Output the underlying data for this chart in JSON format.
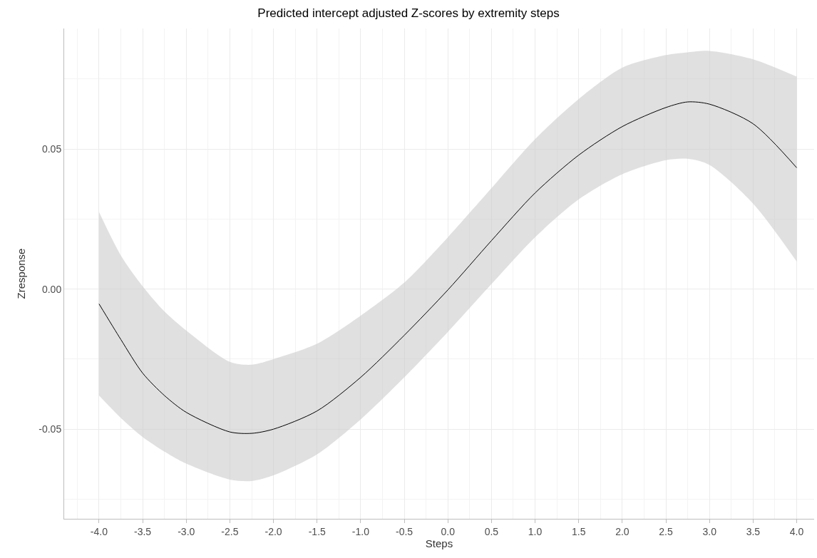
{
  "chart_data": {
    "type": "line",
    "title": "Predicted intercept adjusted Z-scores by extremity steps",
    "xlabel": "Steps",
    "ylabel": "Zresponse",
    "x": [
      -4.0,
      -3.75,
      -3.5,
      -3.25,
      -3.0,
      -2.5,
      -2.25,
      -2.0,
      -1.5,
      -1.0,
      -0.5,
      0.0,
      0.5,
      1.0,
      1.5,
      2.0,
      2.5,
      2.75,
      3.0,
      3.5,
      4.0
    ],
    "series": [
      {
        "color": "#000000",
        "values": [
          -0.0053,
          -0.018,
          -0.03,
          -0.038,
          -0.044,
          -0.051,
          -0.0515,
          -0.05,
          -0.0435,
          -0.0315,
          -0.0165,
          -0.0003,
          0.0173,
          0.0343,
          0.0478,
          0.058,
          0.0648,
          0.0668,
          0.066,
          0.059,
          0.0433
        ],
        "lower": [
          -0.038,
          -0.046,
          -0.0528,
          -0.058,
          -0.0623,
          -0.068,
          -0.0685,
          -0.0665,
          -0.059,
          -0.0465,
          -0.0315,
          -0.0153,
          0.0018,
          0.0185,
          0.032,
          0.041,
          0.046,
          0.0465,
          0.0443,
          0.0305,
          0.0098
        ],
        "upper": [
          0.0275,
          0.012,
          0.001,
          -0.008,
          -0.0148,
          -0.026,
          -0.027,
          -0.025,
          -0.0195,
          -0.0095,
          0.0023,
          0.0185,
          0.036,
          0.0535,
          0.0678,
          0.079,
          0.0835,
          0.0845,
          0.085,
          0.082,
          0.0758
        ]
      }
    ],
    "xlim": [
      -4.4,
      4.2
    ],
    "ylim": [
      -0.082,
      0.093
    ],
    "xticks": [
      {
        "value": -4.0,
        "label": "-4.0"
      },
      {
        "value": -3.5,
        "label": "-3.5"
      },
      {
        "value": -3.0,
        "label": "-3.0"
      },
      {
        "value": -2.5,
        "label": "-2.5"
      },
      {
        "value": -2.0,
        "label": "-2.0"
      },
      {
        "value": -1.5,
        "label": "-1.5"
      },
      {
        "value": -1.0,
        "label": "-1.0"
      },
      {
        "value": -0.5,
        "label": "-0.5"
      },
      {
        "value": 0.0,
        "label": "0.0"
      },
      {
        "value": 0.5,
        "label": "0.5"
      },
      {
        "value": 1.0,
        "label": "1.0"
      },
      {
        "value": 1.5,
        "label": "1.5"
      },
      {
        "value": 2.0,
        "label": "2.0"
      },
      {
        "value": 2.5,
        "label": "2.5"
      },
      {
        "value": 3.0,
        "label": "3.0"
      },
      {
        "value": 3.5,
        "label": "3.5"
      },
      {
        "value": 4.0,
        "label": "4.0"
      }
    ],
    "yticks": [
      {
        "value": -0.05,
        "label": "-0.05"
      },
      {
        "value": 0.0,
        "label": "0.00"
      },
      {
        "value": 0.05,
        "label": "0.05"
      }
    ],
    "grid": true,
    "marker": "none",
    "line_style": "solid"
  }
}
